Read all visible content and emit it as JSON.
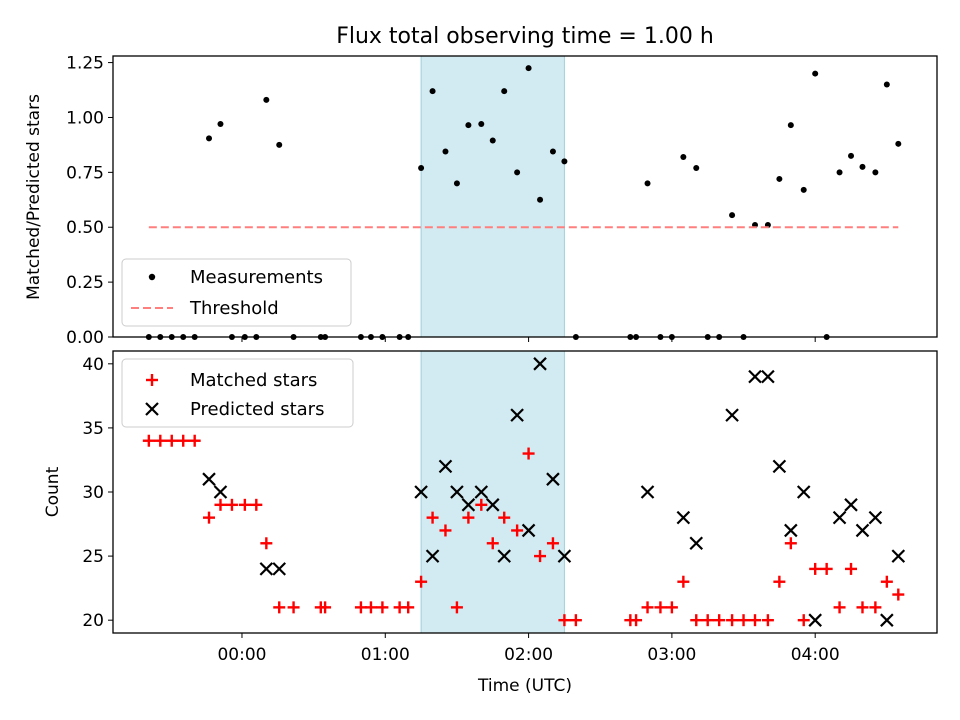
{
  "figure": {
    "title": "Flux total observing time = 1.00 h",
    "xlabel": "Time (UTC)",
    "x_tick_labels": [
      "00:00",
      "01:00",
      "02:00",
      "03:00",
      "04:00"
    ]
  },
  "colors": {
    "measurement": "#000000",
    "threshold": "#ff7f7f",
    "highlight": "#add8e6",
    "matched": "#ff0000",
    "predicted": "#000000",
    "axis": "#000000"
  },
  "chart_data": [
    {
      "type": "scatter",
      "panel": "top",
      "ylabel": "Matched/Predicted stars",
      "ylim": [
        0.0,
        1.28
      ],
      "yticks": [
        0.0,
        0.25,
        0.5,
        0.75,
        1.0,
        1.25
      ],
      "ytick_labels": [
        "0.00",
        "0.25",
        "0.50",
        "0.75",
        "1.00",
        "1.25"
      ],
      "xlim_hours": [
        -0.9,
        4.85
      ],
      "xticks_hours": [
        0,
        1,
        2,
        3,
        4
      ],
      "highlight_span_hours": [
        1.25,
        2.25
      ],
      "legend_position": "lower-left",
      "series": [
        {
          "name": "Measurements",
          "marker": "dot",
          "points": [
            [
              -0.65,
              0.0
            ],
            [
              -0.57,
              0.0
            ],
            [
              -0.49,
              0.0
            ],
            [
              -0.41,
              0.0
            ],
            [
              -0.33,
              0.0
            ],
            [
              -0.23,
              0.905
            ],
            [
              -0.15,
              0.97
            ],
            [
              -0.07,
              0.0
            ],
            [
              0.02,
              0.0
            ],
            [
              0.1,
              0.0
            ],
            [
              0.17,
              1.08
            ],
            [
              0.26,
              0.875
            ],
            [
              0.36,
              0.0
            ],
            [
              0.55,
              0.0
            ],
            [
              0.58,
              0.0
            ],
            [
              0.83,
              0.0
            ],
            [
              0.9,
              0.0
            ],
            [
              0.98,
              0.0
            ],
            [
              1.1,
              0.0
            ],
            [
              1.16,
              0.0
            ],
            [
              1.25,
              0.77
            ],
            [
              1.33,
              1.12
            ],
            [
              1.42,
              0.845
            ],
            [
              1.5,
              0.7
            ],
            [
              1.58,
              0.965
            ],
            [
              1.67,
              0.97
            ],
            [
              1.75,
              0.895
            ],
            [
              1.83,
              1.12
            ],
            [
              1.92,
              0.75
            ],
            [
              2.0,
              1.225
            ],
            [
              2.08,
              0.625
            ],
            [
              2.17,
              0.845
            ],
            [
              2.25,
              0.8
            ],
            [
              2.33,
              0.0
            ],
            [
              2.71,
              0.0
            ],
            [
              2.75,
              0.0
            ],
            [
              2.83,
              0.7
            ],
            [
              2.92,
              0.0
            ],
            [
              3.0,
              0.0
            ],
            [
              3.08,
              0.82
            ],
            [
              3.17,
              0.77
            ],
            [
              3.25,
              0.0
            ],
            [
              3.33,
              0.0
            ],
            [
              3.42,
              0.555
            ],
            [
              3.5,
              0.0
            ],
            [
              3.58,
              0.51
            ],
            [
              3.67,
              0.51
            ],
            [
              3.75,
              0.72
            ],
            [
              3.83,
              0.965
            ],
            [
              3.92,
              0.67
            ],
            [
              4.0,
              1.2
            ],
            [
              4.08,
              0.0
            ],
            [
              4.17,
              0.75
            ],
            [
              4.25,
              0.825
            ],
            [
              4.33,
              0.775
            ],
            [
              4.42,
              0.75
            ],
            [
              4.5,
              1.15
            ],
            [
              4.58,
              0.88
            ]
          ]
        },
        {
          "name": "Threshold",
          "style": "dashed",
          "x": [
            -0.65,
            4.58
          ],
          "y": [
            0.5,
            0.5
          ]
        }
      ]
    },
    {
      "type": "scatter",
      "panel": "bottom",
      "ylabel": "Count",
      "ylim": [
        19.0,
        41.0
      ],
      "yticks": [
        20,
        25,
        30,
        35,
        40
      ],
      "ytick_labels": [
        "20",
        "25",
        "30",
        "35",
        "40"
      ],
      "xlim_hours": [
        -0.9,
        4.85
      ],
      "xticks_hours": [
        0,
        1,
        2,
        3,
        4
      ],
      "highlight_span_hours": [
        1.25,
        2.25
      ],
      "legend_position": "upper-left",
      "series": [
        {
          "name": "Matched stars",
          "marker": "plus",
          "points": [
            [
              -0.65,
              34
            ],
            [
              -0.57,
              34
            ],
            [
              -0.49,
              34
            ],
            [
              -0.41,
              34
            ],
            [
              -0.33,
              34
            ],
            [
              -0.23,
              28
            ],
            [
              -0.15,
              29
            ],
            [
              -0.07,
              29
            ],
            [
              0.02,
              29
            ],
            [
              0.1,
              29
            ],
            [
              0.17,
              26
            ],
            [
              0.26,
              21
            ],
            [
              0.36,
              21
            ],
            [
              0.55,
              21
            ],
            [
              0.58,
              21
            ],
            [
              0.83,
              21
            ],
            [
              0.9,
              21
            ],
            [
              0.98,
              21
            ],
            [
              1.1,
              21
            ],
            [
              1.16,
              21
            ],
            [
              1.25,
              23
            ],
            [
              1.33,
              28
            ],
            [
              1.42,
              27
            ],
            [
              1.5,
              21
            ],
            [
              1.58,
              28
            ],
            [
              1.67,
              29
            ],
            [
              1.75,
              26
            ],
            [
              1.83,
              28
            ],
            [
              1.92,
              27
            ],
            [
              2.0,
              33
            ],
            [
              2.08,
              25
            ],
            [
              2.17,
              26
            ],
            [
              2.25,
              20
            ],
            [
              2.33,
              20
            ],
            [
              2.71,
              20
            ],
            [
              2.75,
              20
            ],
            [
              2.83,
              21
            ],
            [
              2.92,
              21
            ],
            [
              3.0,
              21
            ],
            [
              3.08,
              23
            ],
            [
              3.17,
              20
            ],
            [
              3.25,
              20
            ],
            [
              3.33,
              20
            ],
            [
              3.42,
              20
            ],
            [
              3.5,
              20
            ],
            [
              3.58,
              20
            ],
            [
              3.67,
              20
            ],
            [
              3.75,
              23
            ],
            [
              3.83,
              26
            ],
            [
              3.92,
              20
            ],
            [
              4.0,
              24
            ],
            [
              4.08,
              24
            ],
            [
              4.17,
              21
            ],
            [
              4.25,
              24
            ],
            [
              4.33,
              21
            ],
            [
              4.42,
              21
            ],
            [
              4.5,
              23
            ],
            [
              4.58,
              22
            ]
          ]
        },
        {
          "name": "Predicted stars",
          "marker": "x",
          "points": [
            [
              -0.23,
              31
            ],
            [
              -0.15,
              30
            ],
            [
              0.17,
              24
            ],
            [
              0.26,
              24
            ],
            [
              1.25,
              30
            ],
            [
              1.33,
              25
            ],
            [
              1.42,
              32
            ],
            [
              1.5,
              30
            ],
            [
              1.58,
              29
            ],
            [
              1.67,
              30
            ],
            [
              1.75,
              29
            ],
            [
              1.83,
              25
            ],
            [
              1.92,
              36
            ],
            [
              2.0,
              27
            ],
            [
              2.08,
              40
            ],
            [
              2.17,
              31
            ],
            [
              2.25,
              25
            ],
            [
              2.83,
              30
            ],
            [
              3.08,
              28
            ],
            [
              3.17,
              26
            ],
            [
              3.42,
              36
            ],
            [
              3.58,
              39
            ],
            [
              3.67,
              39
            ],
            [
              3.75,
              32
            ],
            [
              3.83,
              27
            ],
            [
              3.92,
              30
            ],
            [
              4.0,
              20
            ],
            [
              4.17,
              28
            ],
            [
              4.25,
              29
            ],
            [
              4.33,
              27
            ],
            [
              4.42,
              28
            ],
            [
              4.5,
              20
            ],
            [
              4.58,
              25
            ]
          ]
        }
      ]
    }
  ]
}
